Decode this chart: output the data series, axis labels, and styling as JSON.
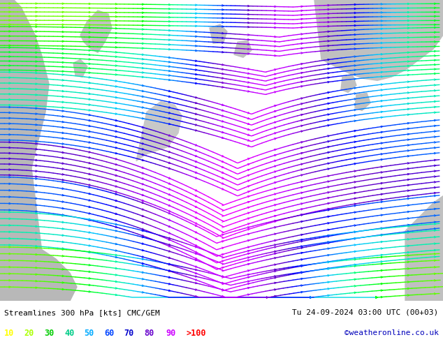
{
  "title_left": "Streamlines 300 hPa [kts] CMC/GEM",
  "title_right": "Tu 24-09-2024 03:00 UTC (00+03)",
  "credit": "©weatheronline.co.uk",
  "legend_values": [
    "10",
    "20",
    "30",
    "40",
    "50",
    "60",
    "70",
    "80",
    "90",
    ">100"
  ],
  "legend_colors": [
    "#ffff00",
    "#aaff00",
    "#00ff00",
    "#00ffaa",
    "#00aaff",
    "#0055ff",
    "#0000ff",
    "#8800ff",
    "#ff00ff",
    "#ff0000"
  ],
  "bg_color": "#ccffcc",
  "land_color_dark": "#aaaaaa",
  "land_color_light": "#cccccc",
  "figsize": [
    6.34,
    4.9
  ],
  "dpi": 100,
  "speed_colors": [
    "#ffff00",
    "#ccff00",
    "#88ff00",
    "#00ff44",
    "#00ff99",
    "#00ccff",
    "#0066ff",
    "#0000ff",
    "#8800cc",
    "#cc00ff",
    "#ff00ff"
  ]
}
